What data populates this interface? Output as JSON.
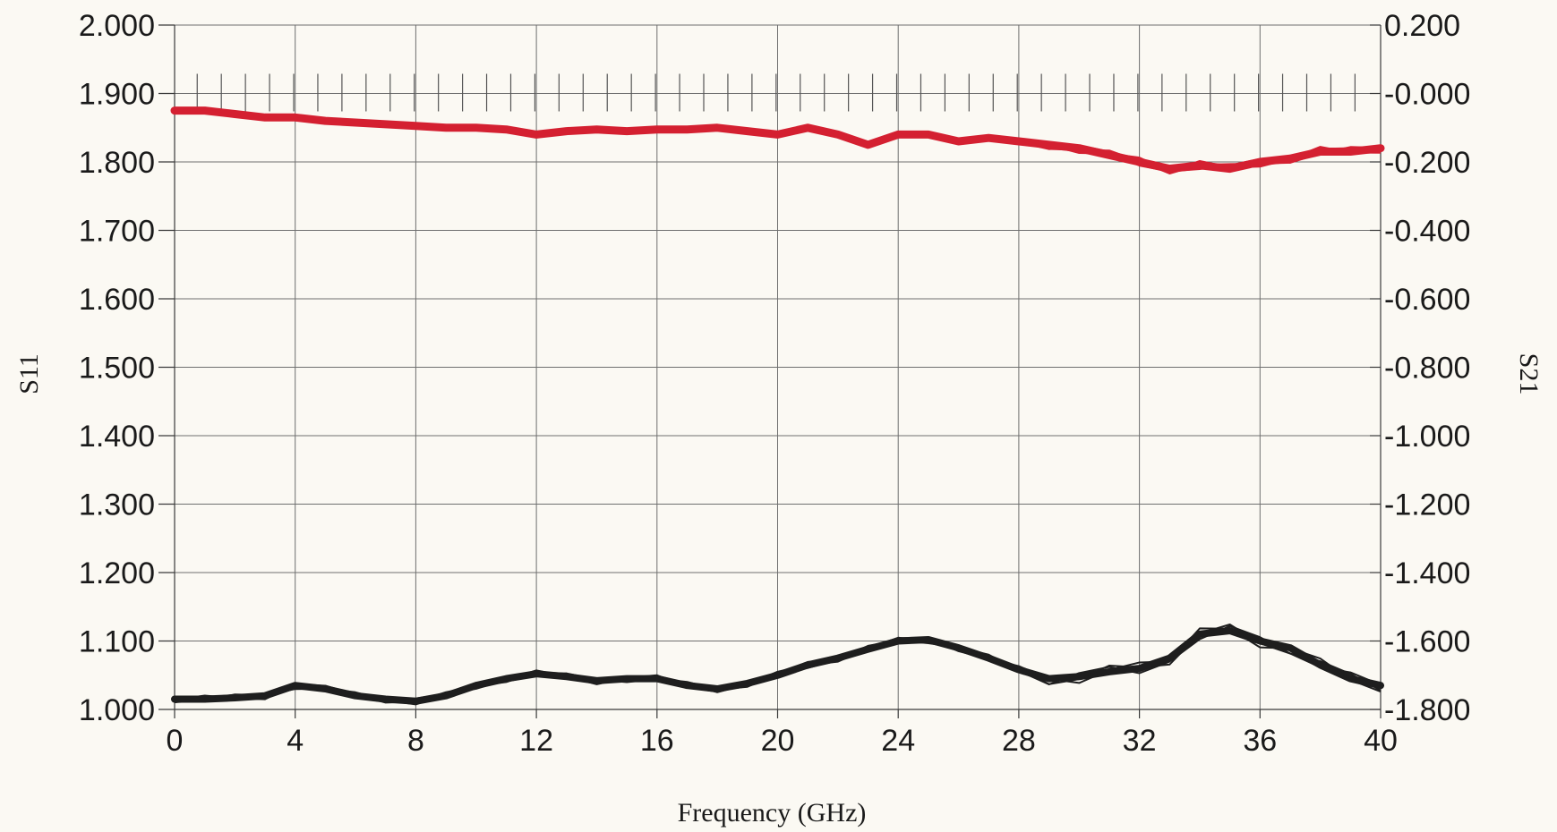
{
  "chart_data": {
    "type": "line",
    "title": "",
    "xlabel": "Frequency (GHz)",
    "ylabel_left": "S11",
    "ylabel_right": "S21",
    "xlim": [
      0,
      40
    ],
    "ylim_left": [
      1.0,
      2.0
    ],
    "ylim_right": [
      -1.8,
      0.2
    ],
    "x_ticks": [
      "0",
      "4",
      "8",
      "12",
      "16",
      "20",
      "24",
      "28",
      "32",
      "36",
      "40"
    ],
    "y_left_ticks": [
      "1.000",
      "1.100",
      "1.200",
      "1.300",
      "1.400",
      "1.500",
      "1.600",
      "1.700",
      "1.800",
      "1.900",
      "2.000"
    ],
    "y_right_ticks": [
      "-1.800",
      "-1.600",
      "-1.400",
      "-1.200",
      "-1.000",
      "-0.800",
      "-0.600",
      "-0.400",
      "-0.200",
      "-0.000",
      "0.200"
    ],
    "grid": true,
    "series": [
      {
        "axis": "right",
        "color": "#d42031",
        "x": [
          0,
          1,
          2,
          3,
          4,
          5,
          6,
          7,
          8,
          9,
          10,
          11,
          12,
          13,
          14,
          15,
          16,
          17,
          18,
          19,
          20,
          21,
          22,
          23,
          24,
          25,
          26,
          27,
          28,
          29,
          30,
          31,
          32,
          33,
          34,
          35,
          36,
          37,
          38,
          39,
          40
        ],
        "values": [
          -0.05,
          -0.05,
          -0.06,
          -0.07,
          -0.07,
          -0.08,
          -0.085,
          -0.09,
          -0.095,
          -0.1,
          -0.1,
          -0.105,
          -0.12,
          -0.11,
          -0.105,
          -0.11,
          -0.105,
          -0.105,
          -0.1,
          -0.11,
          -0.12,
          -0.1,
          -0.12,
          -0.15,
          -0.12,
          -0.12,
          -0.14,
          -0.13,
          -0.14,
          -0.15,
          -0.16,
          -0.18,
          -0.2,
          -0.22,
          -0.21,
          -0.22,
          -0.2,
          -0.19,
          -0.17,
          -0.17,
          -0.16
        ]
      },
      {
        "axis": "left",
        "color": "#1e1e1e",
        "x": [
          0,
          1,
          2,
          3,
          4,
          5,
          6,
          7,
          8,
          9,
          10,
          11,
          12,
          13,
          14,
          15,
          16,
          17,
          18,
          19,
          20,
          21,
          22,
          23,
          24,
          25,
          26,
          27,
          28,
          29,
          30,
          31,
          32,
          33,
          34,
          35,
          36,
          37,
          38,
          39,
          40
        ],
        "values": [
          1.015,
          1.015,
          1.017,
          1.02,
          1.035,
          1.03,
          1.02,
          1.015,
          1.012,
          1.02,
          1.035,
          1.045,
          1.052,
          1.048,
          1.042,
          1.045,
          1.045,
          1.035,
          1.03,
          1.038,
          1.05,
          1.065,
          1.075,
          1.088,
          1.1,
          1.102,
          1.09,
          1.075,
          1.058,
          1.045,
          1.048,
          1.055,
          1.06,
          1.075,
          1.11,
          1.115,
          1.1,
          1.09,
          1.065,
          1.045,
          1.035
        ]
      }
    ]
  }
}
